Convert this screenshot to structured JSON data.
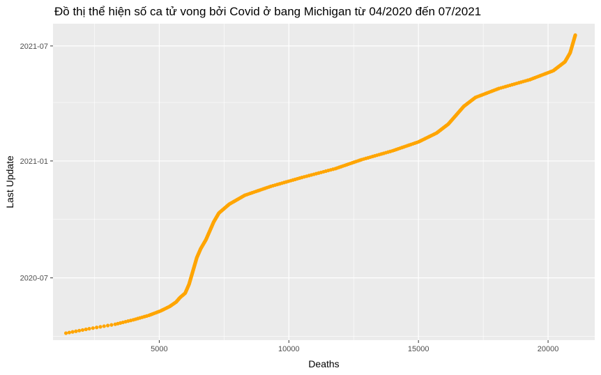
{
  "chart_data": {
    "type": "scatter",
    "title": "Đồ thị thể hiện số ca tử vong bởi Covid ở bang Michigan từ 04/2020 đến 07/2021",
    "xlabel": "Deaths",
    "ylabel": "Last Update",
    "x_ticks": [
      5000,
      10000,
      15000,
      20000
    ],
    "y_ticks": [
      "2020-07",
      "2021-01",
      "2021-07"
    ],
    "xlim": [
      900,
      21800
    ],
    "ylim": [
      "2020-03-25",
      "2021-08-05"
    ],
    "grid": true,
    "legend": "none",
    "point_color": "#FFA500",
    "panel_color": "#EBEBEB",
    "series": [
      {
        "points": [
          {
            "x": 1400,
            "y": "2020-04-05"
          },
          {
            "x": 2300,
            "y": "2020-04-12"
          },
          {
            "x": 3300,
            "y": "2020-04-19"
          },
          {
            "x": 4000,
            "y": "2020-04-26"
          },
          {
            "x": 4600,
            "y": "2020-05-03"
          },
          {
            "x": 5050,
            "y": "2020-05-10"
          },
          {
            "x": 5400,
            "y": "2020-05-17"
          },
          {
            "x": 5650,
            "y": "2020-05-24"
          },
          {
            "x": 5800,
            "y": "2020-05-31"
          },
          {
            "x": 6000,
            "y": "2020-06-07"
          },
          {
            "x": 6150,
            "y": "2020-06-21"
          },
          {
            "x": 6250,
            "y": "2020-07-05"
          },
          {
            "x": 6350,
            "y": "2020-07-19"
          },
          {
            "x": 6450,
            "y": "2020-08-02"
          },
          {
            "x": 6600,
            "y": "2020-08-16"
          },
          {
            "x": 6800,
            "y": "2020-08-30"
          },
          {
            "x": 6950,
            "y": "2020-09-13"
          },
          {
            "x": 7100,
            "y": "2020-09-27"
          },
          {
            "x": 7300,
            "y": "2020-10-11"
          },
          {
            "x": 7700,
            "y": "2020-10-25"
          },
          {
            "x": 8300,
            "y": "2020-11-08"
          },
          {
            "x": 9300,
            "y": "2020-11-22"
          },
          {
            "x": 10500,
            "y": "2020-12-06"
          },
          {
            "x": 11800,
            "y": "2020-12-20"
          },
          {
            "x": 12800,
            "y": "2021-01-03"
          },
          {
            "x": 14000,
            "y": "2021-01-17"
          },
          {
            "x": 15000,
            "y": "2021-01-31"
          },
          {
            "x": 15700,
            "y": "2021-02-14"
          },
          {
            "x": 16150,
            "y": "2021-02-28"
          },
          {
            "x": 16450,
            "y": "2021-03-14"
          },
          {
            "x": 16750,
            "y": "2021-03-28"
          },
          {
            "x": 17200,
            "y": "2021-04-11"
          },
          {
            "x": 18100,
            "y": "2021-04-25"
          },
          {
            "x": 19300,
            "y": "2021-05-09"
          },
          {
            "x": 20200,
            "y": "2021-05-23"
          },
          {
            "x": 20650,
            "y": "2021-06-06"
          },
          {
            "x": 20850,
            "y": "2021-06-20"
          },
          {
            "x": 20950,
            "y": "2021-07-04"
          },
          {
            "x": 21050,
            "y": "2021-07-18"
          }
        ]
      }
    ]
  }
}
